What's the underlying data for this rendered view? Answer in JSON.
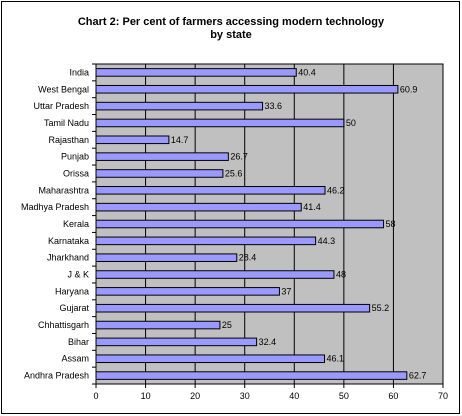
{
  "chart_data": {
    "type": "bar",
    "orientation": "horizontal",
    "title_line1": "Chart 2: Per cent of farmers accessing modern technology",
    "title_line2": "by state",
    "categories": [
      "India",
      "West Bengal",
      "Uttar Pradesh",
      "Tamil Nadu",
      "Rajasthan",
      "Punjab",
      "Orissa",
      "Maharashtra",
      "Madhya Pradesh",
      "Kerala",
      "Karnataka",
      "Jharkhand",
      "J & K",
      "Haryana",
      "Gujarat",
      "Chhattisgarh",
      "Bihar",
      "Assam",
      "Andhra Pradesh"
    ],
    "values": [
      40.4,
      60.9,
      33.6,
      50,
      14.7,
      26.7,
      25.6,
      46.2,
      41.4,
      58,
      44.3,
      28.4,
      48,
      37,
      55.2,
      25,
      32.4,
      46.1,
      62.7
    ],
    "value_labels": [
      "40.4",
      "60.9",
      "33.6",
      "50",
      "14.7",
      "26.7",
      "25.6",
      "46.2",
      "41.4",
      "58",
      "44.3",
      "28.4",
      "48",
      "37",
      "55.2",
      "25",
      "32.4",
      "46.1",
      "62.7"
    ],
    "xlim": [
      0,
      70
    ],
    "x_ticks": [
      "0",
      "10",
      "20",
      "30",
      "40",
      "50",
      "60",
      "70"
    ],
    "grid": true,
    "legend": "none",
    "colors": {
      "bar_fill": "#9999ff",
      "bar_stroke": "#000000",
      "plot_background": "#c0c0c0",
      "gridline": "#000000"
    }
  }
}
